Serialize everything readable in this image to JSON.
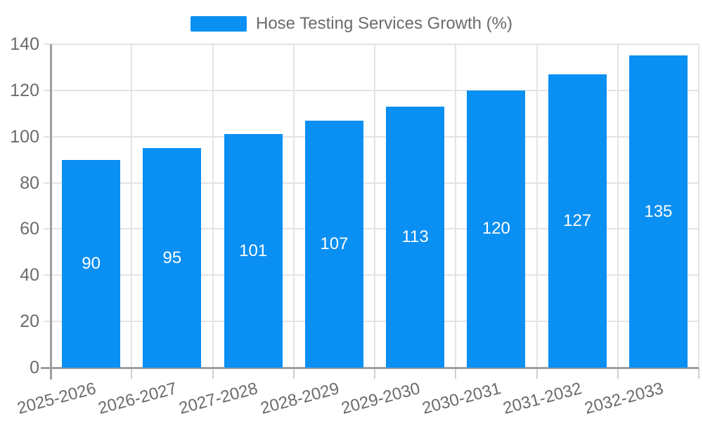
{
  "legend": {
    "series_label": "Hose Testing Services Growth (%)"
  },
  "colors": {
    "bar": "#0a8ff2",
    "bar_label": "#ffffff",
    "axis_text": "#6b6b6b",
    "grid_line": "#e4e4e4",
    "axis_line": "#9e9e9e",
    "tick_line": "#cfcfcf",
    "background": "#ffffff"
  },
  "chart_data": {
    "type": "bar",
    "title": "Hose Testing Services Growth (%)",
    "categories": [
      "2025-2026",
      "2026-2027",
      "2027-2028",
      "2028-2029",
      "2029-2030",
      "2030-2031",
      "2031-2032",
      "2032-2033"
    ],
    "values": [
      90,
      95,
      101,
      107,
      113,
      120,
      127,
      135
    ],
    "xlabel": "",
    "ylabel": "",
    "ylim": [
      0,
      140
    ],
    "yticks": [
      0,
      20,
      40,
      60,
      80,
      100,
      120,
      140
    ],
    "grid": true,
    "legend_position": "top-center",
    "bar_value_labels": "inside-center",
    "x_tick_label_rotation_deg": -15
  }
}
